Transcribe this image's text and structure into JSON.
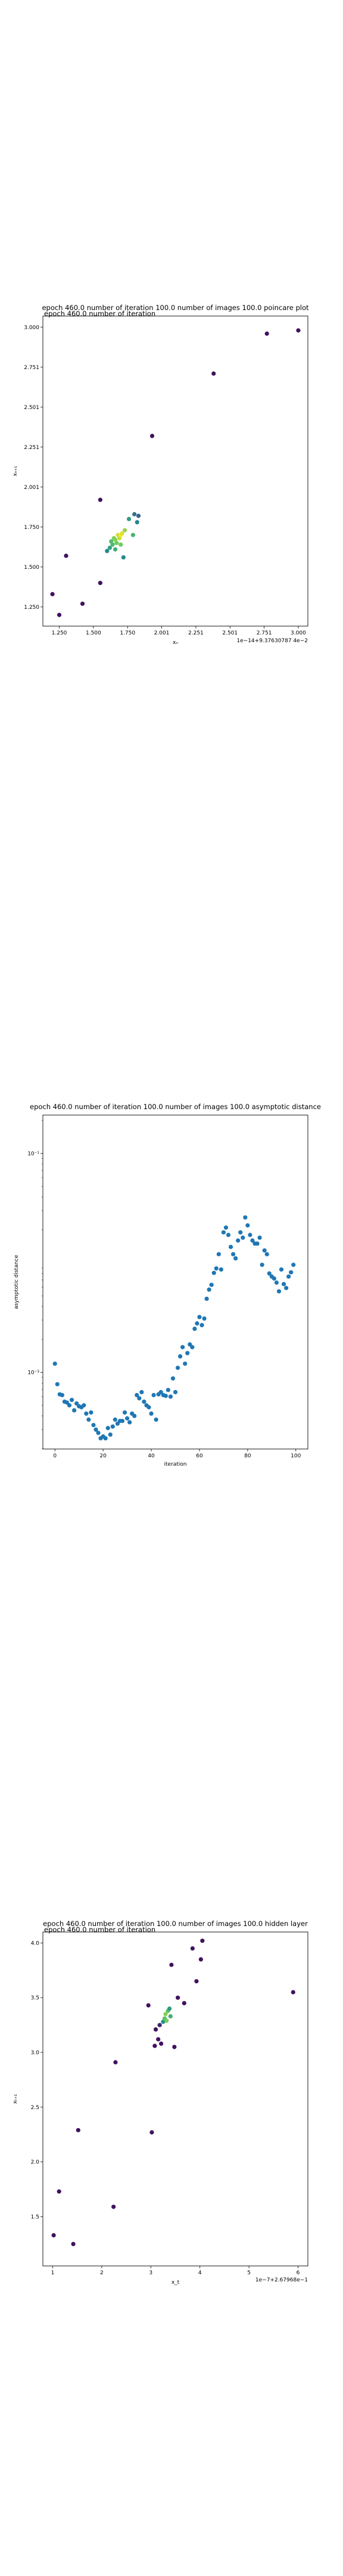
{
  "chart_data": [
    {
      "type": "scatter",
      "title": "epoch 460.0 number of iteration 100.0 number of images 100.0 poincare plot",
      "overlay_title": "epoch 460.0 number of iteration",
      "xlabel": "xₙ",
      "ylabel": "xₙ₊₁",
      "offset_text": "1e−14+9.37630787 4e−2",
      "xlim": [
        1.13,
        3.07
      ],
      "ylim": [
        1.13,
        3.07
      ],
      "xticks": [
        1.25,
        1.5,
        1.75,
        2.0,
        2.25,
        2.5,
        2.75,
        3.0
      ],
      "xtick_labels": [
        "1.250",
        "1.500",
        "1.750",
        "2.001",
        "2.251",
        "2.501",
        "2.751",
        "3.000"
      ],
      "yticks": [
        1.25,
        1.5,
        1.75,
        2.0,
        2.25,
        2.5,
        2.75,
        3.0
      ],
      "ytick_labels": [
        "1.250",
        "1.500",
        "1.750",
        "2.001",
        "2.251",
        "2.501",
        "2.751",
        "3.000"
      ],
      "colormap": "viridis",
      "points": [
        [
          1.2,
          1.33
        ],
        [
          1.25,
          1.2
        ],
        [
          1.3,
          1.57
        ],
        [
          1.42,
          1.27
        ],
        [
          1.55,
          1.4
        ],
        [
          1.55,
          1.92
        ],
        [
          1.6,
          1.6
        ],
        [
          1.62,
          1.62
        ],
        [
          1.63,
          1.66
        ],
        [
          1.64,
          1.64
        ],
        [
          1.65,
          1.68
        ],
        [
          1.66,
          1.61
        ],
        [
          1.66,
          1.67
        ],
        [
          1.67,
          1.65
        ],
        [
          1.68,
          1.7
        ],
        [
          1.69,
          1.68
        ],
        [
          1.7,
          1.64
        ],
        [
          1.7,
          1.7
        ],
        [
          1.71,
          1.71
        ],
        [
          1.72,
          1.56
        ],
        [
          1.73,
          1.73
        ],
        [
          1.76,
          1.8
        ],
        [
          1.79,
          1.7
        ],
        [
          1.8,
          1.83
        ],
        [
          1.82,
          1.78
        ],
        [
          1.83,
          1.82
        ],
        [
          1.93,
          2.32
        ],
        [
          2.38,
          2.71
        ],
        [
          2.77,
          2.96
        ],
        [
          3.0,
          2.98
        ]
      ]
    },
    {
      "type": "scatter",
      "title": "epoch 460.0 number of iteration 100.0  number of images 100.0 asymptotic distance",
      "xlabel": "iteration",
      "ylabel": "asymptotic distance",
      "xlim": [
        -5,
        105
      ],
      "ylim_log10": [
        -3.7,
        -0.65
      ],
      "yscale": "log",
      "xticks": [
        0,
        20,
        40,
        60,
        80,
        100
      ],
      "xtick_labels": [
        "0",
        "20",
        "40",
        "60",
        "80",
        "100"
      ],
      "yticks_log10": [
        -3,
        -1
      ],
      "ytick_labels": [
        "10⁻³",
        "10⁻¹"
      ],
      "color": "#1f77b4",
      "x": [
        0,
        1,
        2,
        3,
        4,
        5,
        6,
        7,
        8,
        9,
        10,
        11,
        12,
        13,
        14,
        15,
        16,
        17,
        18,
        19,
        20,
        21,
        22,
        23,
        24,
        25,
        26,
        27,
        28,
        29,
        30,
        31,
        32,
        33,
        34,
        35,
        36,
        37,
        38,
        39,
        40,
        41,
        42,
        43,
        44,
        45,
        46,
        47,
        48,
        49,
        50,
        51,
        52,
        53,
        54,
        55,
        56,
        57,
        58,
        59,
        60,
        61,
        62,
        63,
        64,
        65,
        66,
        67,
        68,
        69,
        70,
        71,
        72,
        73,
        74,
        75,
        76,
        77,
        78,
        79,
        80,
        81,
        82,
        83,
        84,
        85,
        86,
        87,
        88,
        89,
        90,
        91,
        92,
        93,
        94,
        95,
        96,
        97,
        98,
        99
      ],
      "y": [
        0.0012,
        0.00078,
        0.00063,
        0.00062,
        0.00054,
        0.00053,
        0.0005,
        0.00056,
        0.00045,
        0.00052,
        0.00049,
        0.00048,
        0.0005,
        0.00042,
        0.00037,
        0.00043,
        0.00033,
        0.0003,
        0.00028,
        0.00025,
        0.00026,
        0.00025,
        0.00031,
        0.00027,
        0.00032,
        0.00037,
        0.00034,
        0.00036,
        0.00036,
        0.00043,
        0.00038,
        0.00035,
        0.00042,
        0.0004,
        0.00062,
        0.00058,
        0.00066,
        0.00054,
        0.0005,
        0.00048,
        0.00042,
        0.00062,
        0.00037,
        0.00063,
        0.00066,
        0.00062,
        0.00061,
        0.00069,
        0.0006,
        0.00088,
        0.00066,
        0.0011,
        0.0014,
        0.0017,
        0.0012,
        0.0015,
        0.0018,
        0.0017,
        0.0025,
        0.0028,
        0.0032,
        0.0027,
        0.0031,
        0.0047,
        0.0057,
        0.0063,
        0.0081,
        0.0089,
        0.012,
        0.0087,
        0.019,
        0.021,
        0.018,
        0.014,
        0.012,
        0.011,
        0.016,
        0.019,
        0.017,
        0.026,
        0.022,
        0.018,
        0.016,
        0.015,
        0.015,
        0.017,
        0.0096,
        0.013,
        0.012,
        0.008,
        0.0075,
        0.0072,
        0.0066,
        0.0055,
        0.0087,
        0.0064,
        0.0059,
        0.0075,
        0.0082,
        0.0096
      ]
    },
    {
      "type": "scatter",
      "title": "epoch 460.0 number of iteration 100.0  number of images 100.0 hidden layer",
      "overlay_title": "epoch 460.0 number of iteration",
      "xlabel": "x_t",
      "ylabel": "xₜ₊₁",
      "offset_text": "1e−7+2.67968e−1",
      "xlim": [
        0.8,
        6.2
      ],
      "ylim": [
        1.05,
        4.1
      ],
      "xticks": [
        1,
        2,
        3,
        4,
        5,
        6
      ],
      "xtick_labels": [
        "1",
        "2",
        "3",
        "4",
        "5",
        "6"
      ],
      "yticks": [
        1.5,
        2.0,
        2.5,
        3.0,
        3.5,
        4.0
      ],
      "ytick_labels": [
        "1.5",
        "2.0",
        "2.5",
        "3.0",
        "3.5",
        "4.0"
      ],
      "colormap": "viridis",
      "points": [
        [
          1.02,
          1.33
        ],
        [
          1.13,
          1.73
        ],
        [
          1.42,
          1.25
        ],
        [
          1.52,
          2.29
        ],
        [
          2.24,
          1.59
        ],
        [
          2.28,
          2.91
        ],
        [
          2.95,
          3.43
        ],
        [
          3.02,
          2.27
        ],
        [
          3.08,
          3.06
        ],
        [
          3.1,
          3.21
        ],
        [
          3.15,
          3.12
        ],
        [
          3.18,
          3.25
        ],
        [
          3.21,
          3.08
        ],
        [
          3.25,
          3.28
        ],
        [
          3.28,
          3.31
        ],
        [
          3.3,
          3.35
        ],
        [
          3.32,
          3.29
        ],
        [
          3.35,
          3.38
        ],
        [
          3.38,
          3.4
        ],
        [
          3.4,
          3.33
        ],
        [
          3.42,
          3.8
        ],
        [
          3.48,
          3.05
        ],
        [
          3.55,
          3.5
        ],
        [
          3.68,
          3.45
        ],
        [
          3.85,
          3.95
        ],
        [
          3.93,
          3.65
        ],
        [
          4.02,
          3.85
        ],
        [
          4.05,
          4.02
        ],
        [
          5.9,
          3.55
        ]
      ]
    }
  ]
}
